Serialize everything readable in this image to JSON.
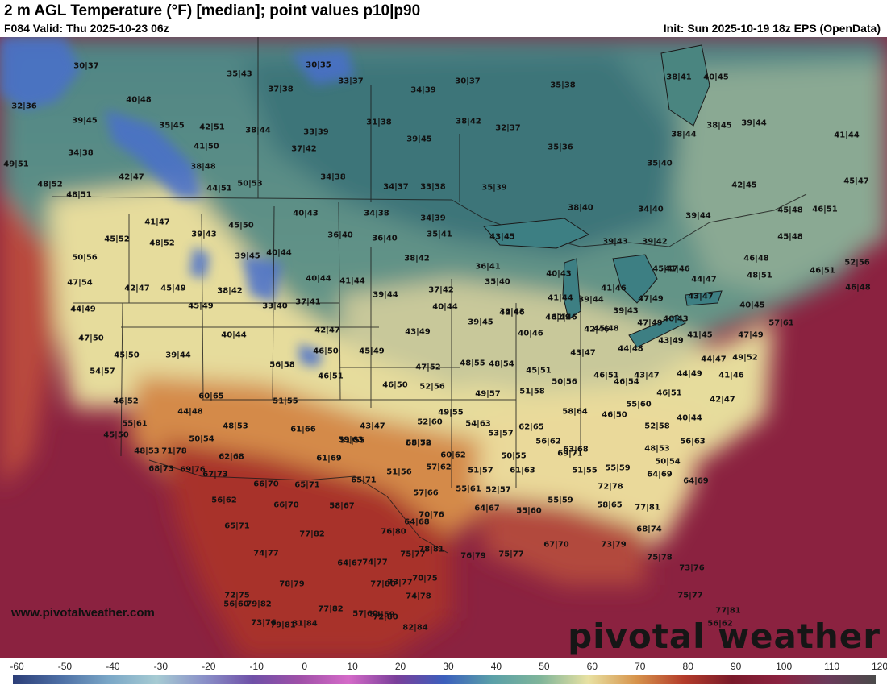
{
  "header": {
    "title": "2 m AGL Temperature (°F) [median]; point values p10|p90",
    "valid": "F084 Valid: Thu 2025-10-23 06z",
    "init": "Init: Sun 2025-10-19 18z EPS (OpenData)"
  },
  "footer": {
    "website": "www.pivotalweather.com",
    "brand": "pivotal weather"
  },
  "legend": {
    "ticks": [
      "-60",
      "-50",
      "-40",
      "-30",
      "-20",
      "-10",
      "0",
      "10",
      "20",
      "30",
      "40",
      "50",
      "60",
      "70",
      "80",
      "90",
      "100",
      "110",
      "120"
    ]
  },
  "colors": {
    "ocean_warm": "#8c1f3a",
    "cold_blue": "#3a5fc0",
    "teal": "#3f7f80",
    "yellow": "#f0e7a0",
    "orange": "#d7783c",
    "dark_red": "#7c1a1a"
  },
  "point_values": [
    "30|37",
    "30|35",
    "35|43",
    "33|37",
    "37|38",
    "30|37",
    "35|38",
    "32|36",
    "40|48",
    "34|39",
    "39|45",
    "35|45",
    "42|51",
    "38|44",
    "33|39",
    "31|38",
    "39|45",
    "38|42",
    "32|37",
    "38|41",
    "40|45",
    "38|45",
    "39|44",
    "38|44",
    "41|44",
    "34|38",
    "41|50",
    "37|42",
    "35|36",
    "49|51",
    "38|48",
    "34|38",
    "35|40",
    "42|47",
    "48|52",
    "44|51",
    "50|53",
    "34|37",
    "33|38",
    "35|39",
    "42|45",
    "45|47",
    "48|51",
    "40|43",
    "34|38",
    "34|39",
    "38|40",
    "34|40",
    "39|44",
    "45|48",
    "46|51",
    "41|47",
    "45|50",
    "39|43",
    "36|40",
    "35|41",
    "43|45",
    "39|42",
    "45|48",
    "39|43",
    "45|52",
    "48|52",
    "40|44",
    "36|40",
    "38|42",
    "46|48",
    "50|56",
    "39|45",
    "36|41",
    "40|43",
    "41|46",
    "52|56",
    "47|54",
    "42|47",
    "45|49",
    "40|44",
    "41|44",
    "37|42",
    "35|40",
    "45|47",
    "44|47",
    "48|51",
    "46|51",
    "46|48",
    "38|42",
    "44|49",
    "45|49",
    "33|40",
    "37|41",
    "40|44",
    "39|44",
    "41|44",
    "39|44",
    "41|46",
    "47|49",
    "43|47",
    "40|45",
    "39|43",
    "42|46",
    "46|49",
    "45|48",
    "57|61",
    "47|50",
    "40|44",
    "42|47",
    "43|49",
    "39|45",
    "38|43",
    "41|46",
    "47|49",
    "40|43",
    "41|45",
    "47|49",
    "45|50",
    "39|44",
    "46|50",
    "45|49",
    "40|46",
    "42|46",
    "43|47",
    "44|48",
    "43|49",
    "44|47",
    "49|52",
    "54|57",
    "56|58",
    "46|51",
    "47|52",
    "48|55",
    "48|54",
    "45|51",
    "46|51",
    "43|47",
    "44|49",
    "41|46",
    "46|50",
    "52|56",
    "49|57",
    "51|58",
    "50|56",
    "46|54",
    "46|51",
    "42|47",
    "46|52",
    "51|55",
    "60|65",
    "49|55",
    "58|64",
    "55|60",
    "46|50",
    "40|44",
    "44|48",
    "48|53",
    "61|66",
    "43|47",
    "52|60",
    "54|63",
    "62|65",
    "53|57",
    "52|58",
    "55|61",
    "50|54",
    "59|63",
    "68|72",
    "56|63",
    "64|69",
    "45|50",
    "48|53",
    "51|55",
    "55|58",
    "60|62",
    "63|68",
    "56|62",
    "48|53",
    "50|54",
    "69|71",
    "71|78",
    "62|68",
    "61|69",
    "57|62",
    "51|57",
    "50|55",
    "61|63",
    "68|73",
    "69|76",
    "67|73",
    "65|71",
    "51|56",
    "51|55",
    "55|59",
    "64|69",
    "66|70",
    "65|71",
    "57|66",
    "55|61",
    "52|57",
    "72|78",
    "56|62",
    "66|70",
    "58|67",
    "64|67",
    "55|60",
    "55|59",
    "58|65",
    "77|81",
    "65|71",
    "70|76",
    "64|68",
    "68|74",
    "77|82",
    "76|80",
    "75|77",
    "78|81",
    "76|79",
    "75|77",
    "67|70",
    "73|79",
    "74|77",
    "64|67",
    "74|77",
    "75|78",
    "73|76",
    "78|79",
    "77|80",
    "73|77",
    "70|75",
    "75|77",
    "72|75",
    "79|82",
    "74|78",
    "77|81",
    "79|81",
    "56|62",
    "77|82",
    "57|60",
    "72|80",
    "82|84",
    "56|60",
    "73|76",
    "81|84",
    "54|59"
  ]
}
